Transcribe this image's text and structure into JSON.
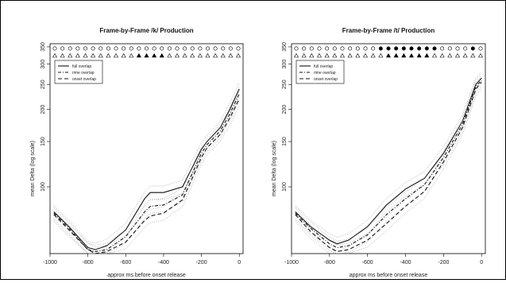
{
  "chart_data": [
    {
      "type": "line",
      "title": "Frame-by-Frame /k/ Production",
      "xlabel": "approx ms before onset release",
      "ylabel": "mean Delta (log scale)",
      "y_scale": "log",
      "xlim": [
        -1000,
        20
      ],
      "ylim": [
        55,
        360
      ],
      "x_ticks": [
        "-1000",
        "-800",
        "-600",
        "-400",
        "-200",
        "0"
      ],
      "y_ticks": [
        "100",
        "150",
        "200",
        "250",
        "300",
        "350"
      ],
      "legend": {
        "placement": "top-left",
        "entries": [
          "full overlap",
          "rime overlap",
          "onset overlap"
        ]
      },
      "marker_rows": {
        "circles_filled": [
          false,
          false,
          false,
          false,
          false,
          false,
          false,
          false,
          false,
          false,
          false,
          false,
          false,
          false,
          false,
          false,
          false,
          false,
          false,
          false,
          false,
          false,
          false,
          false,
          false
        ],
        "triangles_filled": [
          false,
          false,
          false,
          false,
          false,
          false,
          false,
          false,
          false,
          false,
          false,
          true,
          true,
          true,
          true,
          false,
          false,
          false,
          false,
          false,
          false,
          false,
          false,
          false,
          false
        ]
      },
      "series": [
        {
          "name": "full overlap",
          "style": "solid",
          "x": [
            -980,
            -900,
            -800,
            -760,
            -700,
            -600,
            -500,
            -470,
            -400,
            -300,
            -200,
            -170,
            -100,
            -50,
            0
          ],
          "y": [
            80,
            70,
            58,
            57,
            59,
            68,
            90,
            95,
            95,
            100,
            140,
            150,
            170,
            200,
            240
          ]
        },
        {
          "name": "rime overlap",
          "style": "dotdash",
          "x": [
            -980,
            -900,
            -800,
            -760,
            -700,
            -600,
            -500,
            -470,
            -400,
            -300,
            -200,
            -170,
            -100,
            -50,
            0
          ],
          "y": [
            79,
            69,
            57,
            56,
            57,
            64,
            80,
            84,
            85,
            93,
            135,
            146,
            165,
            192,
            230
          ]
        },
        {
          "name": "onset overlap",
          "style": "dashed",
          "x": [
            -980,
            -900,
            -800,
            -760,
            -700,
            -600,
            -500,
            -470,
            -400,
            -300,
            -200,
            -170,
            -100,
            -50,
            0
          ],
          "y": [
            78,
            68,
            57,
            55,
            56,
            61,
            74,
            77,
            79,
            89,
            130,
            142,
            160,
            185,
            220
          ]
        }
      ]
    },
    {
      "type": "line",
      "title": "Frame-by-Frame /t/ Production",
      "xlabel": "approx ms before onset release",
      "ylabel": "mean Delta (log scale)",
      "y_scale": "log",
      "xlim": [
        -1000,
        20
      ],
      "ylim": [
        55,
        360
      ],
      "x_ticks": [
        "-1000",
        "-800",
        "-600",
        "-400",
        "-200",
        "0"
      ],
      "y_ticks": [
        "100",
        "150",
        "200",
        "250",
        "300",
        "350"
      ],
      "legend": {
        "placement": "top-left",
        "entries": [
          "full overlap",
          "rime overlap",
          "onset overlap"
        ]
      },
      "marker_rows": {
        "circles_filled": [
          false,
          false,
          false,
          false,
          false,
          false,
          false,
          false,
          false,
          false,
          false,
          true,
          true,
          true,
          true,
          true,
          true,
          true,
          true,
          false,
          false,
          false,
          false,
          true,
          false
        ],
        "triangles_filled": [
          false,
          false,
          false,
          false,
          false,
          false,
          false,
          false,
          false,
          false,
          false,
          false,
          true,
          true,
          true,
          true,
          true,
          true,
          false,
          false,
          false,
          false,
          false,
          false,
          false
        ]
      },
      "series": [
        {
          "name": "full overlap",
          "style": "solid",
          "x": [
            -980,
            -900,
            -800,
            -760,
            -700,
            -600,
            -500,
            -400,
            -300,
            -200,
            -100,
            -30,
            0
          ],
          "y": [
            80,
            70,
            62,
            60,
            62,
            70,
            85,
            98,
            108,
            135,
            180,
            250,
            265
          ]
        },
        {
          "name": "rime overlap",
          "style": "dotdash",
          "x": [
            -980,
            -900,
            -800,
            -760,
            -700,
            -600,
            -500,
            -400,
            -300,
            -200,
            -100,
            -30,
            0
          ],
          "y": [
            79,
            69,
            60,
            58,
            59,
            65,
            78,
            90,
            102,
            130,
            175,
            245,
            260
          ]
        },
        {
          "name": "onset overlap",
          "style": "dashed",
          "x": [
            -980,
            -900,
            -800,
            -760,
            -700,
            -600,
            -500,
            -400,
            -300,
            -200,
            -100,
            -30,
            0
          ],
          "y": [
            78,
            67,
            58,
            56,
            57,
            62,
            72,
            84,
            96,
            125,
            170,
            240,
            255
          ]
        }
      ]
    }
  ]
}
